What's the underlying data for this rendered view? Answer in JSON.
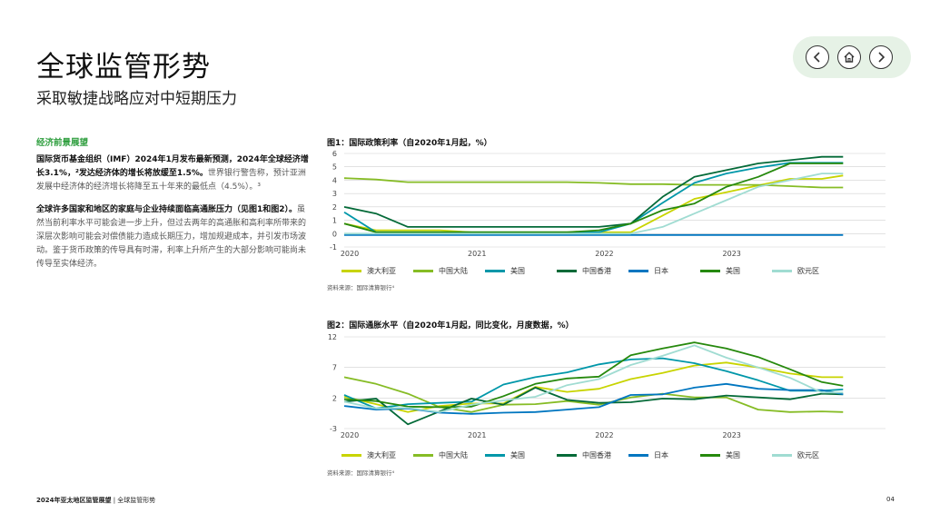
{
  "header": {
    "title": "全球监管形势",
    "subtitle": "采取敏捷战略应对中短期压力"
  },
  "nav": {
    "prev_icon": "chevron-left-icon",
    "home_icon": "home-icon",
    "next_icon": "chevron-right-icon"
  },
  "left": {
    "section_heading": "经济前景展望",
    "p1_bold": "国际货币基金组织（IMF）2024年1月发布最新预测，2024年全球经济增长3.1%，²发达经济体的增长将放缓至1.5%。",
    "p1_rest": "世界银行警告称，预计亚洲发展中经济体的经济增长将降至五十年来的最低点（4.5%）。³",
    "p2_bold": "全球许多国家和地区的家庭与企业持续面临高通胀压力（见图1和图2）。",
    "p2_rest": "虽然当前利率水平可能会进一步上升，但过去两年的高通胀和高利率所带来的深层次影响可能会对偿债能力造成长期压力，增加规避成本，并引发市场波动。鉴于货币政策的传导具有时滞，利率上升所产生的大部分影响可能尚未传导至实体经济。"
  },
  "fig1": {
    "title": "图1：国际政策利率（自2020年1月起，%）",
    "source": "资料来源：国际清算银行⁴"
  },
  "fig2": {
    "title": "图2：国际通胀水平（自2020年1月起，同比变化，月度数据，%）",
    "source": "资料来源：国际清算银行⁴"
  },
  "legend": [
    {
      "name": "澳大利亚",
      "color": "#c8d400"
    },
    {
      "name": "中国大陆",
      "color": "#86bc25"
    },
    {
      "name": "美国",
      "color": "#0097a9"
    },
    {
      "name": "中国香港",
      "color": "#046a38"
    },
    {
      "name": "日本",
      "color": "#0076c0"
    },
    {
      "name": "美国",
      "color": "#26890d"
    },
    {
      "name": "欧元区",
      "color": "#a0dcd2"
    }
  ],
  "chart_data": [
    {
      "type": "line",
      "title": "图1：国际政策利率（自2020年1月起，%）",
      "x_tick_labels": [
        "2020",
        "2021",
        "2022",
        "2023"
      ],
      "ylim": [
        -1,
        6
      ],
      "y_ticks": [
        "6",
        "5",
        "4",
        "3",
        "2",
        "1",
        "0",
        "-1"
      ],
      "x": [
        "2020-01",
        "2020-04",
        "2020-07",
        "2020-10",
        "2021-01",
        "2021-04",
        "2021-07",
        "2021-10",
        "2022-01",
        "2022-04",
        "2022-07",
        "2022-10",
        "2023-01",
        "2023-04",
        "2023-07",
        "2023-10",
        "2023-12"
      ],
      "series": [
        {
          "name": "澳大利亚",
          "values": [
            0.75,
            0.25,
            0.25,
            0.25,
            0.1,
            0.1,
            0.1,
            0.1,
            0.1,
            0.1,
            1.35,
            2.6,
            3.1,
            3.6,
            4.1,
            4.1,
            4.35
          ]
        },
        {
          "name": "中国大陆",
          "values": [
            4.15,
            4.05,
            3.85,
            3.85,
            3.85,
            3.85,
            3.85,
            3.85,
            3.8,
            3.7,
            3.7,
            3.65,
            3.65,
            3.65,
            3.55,
            3.45,
            3.45
          ]
        },
        {
          "name": "美国",
          "values": [
            1.6,
            0.1,
            0.1,
            0.1,
            0.1,
            0.1,
            0.1,
            0.1,
            0.1,
            0.75,
            2.3,
            3.8,
            4.5,
            4.95,
            5.3,
            5.3,
            5.3
          ]
        },
        {
          "name": "中国香港",
          "values": [
            2.0,
            1.5,
            0.5,
            0.5,
            0.5,
            0.5,
            0.5,
            0.5,
            0.5,
            0.75,
            2.75,
            4.25,
            4.75,
            5.25,
            5.5,
            5.75,
            5.75
          ]
        },
        {
          "name": "日本",
          "values": [
            -0.1,
            -0.1,
            -0.1,
            -0.1,
            -0.1,
            -0.1,
            -0.1,
            -0.1,
            -0.1,
            -0.1,
            -0.1,
            -0.1,
            -0.1,
            -0.1,
            -0.1,
            -0.1,
            -0.1
          ]
        },
        {
          "name": "美国",
          "values": [
            0.75,
            0.1,
            0.1,
            0.1,
            0.1,
            0.1,
            0.1,
            0.1,
            0.25,
            0.75,
            1.75,
            2.25,
            3.5,
            4.25,
            5.25,
            5.25,
            5.25
          ]
        },
        {
          "name": "欧元区",
          "values": [
            0.0,
            0.0,
            0.0,
            0.0,
            0.0,
            0.0,
            0.0,
            0.0,
            0.0,
            0.0,
            0.5,
            1.5,
            2.5,
            3.5,
            4.0,
            4.5,
            4.5
          ]
        }
      ]
    },
    {
      "type": "line",
      "title": "图2：国际通胀水平（自2020年1月起，同比变化，月度数据，%）",
      "x_tick_labels": [
        "2020",
        "2021",
        "2022",
        "2023"
      ],
      "ylim": [
        -3,
        12
      ],
      "y_ticks": [
        "12",
        "7",
        "2",
        "-3"
      ],
      "x": [
        "2020-01",
        "2020-04",
        "2020-07",
        "2020-10",
        "2021-01",
        "2021-04",
        "2021-07",
        "2021-10",
        "2022-01",
        "2022-04",
        "2022-07",
        "2022-10",
        "2023-01",
        "2023-04",
        "2023-07",
        "2023-10",
        "2023-12"
      ],
      "series": [
        {
          "name": "澳大利亚",
          "values": [
            2.2,
            1.0,
            -0.3,
            0.7,
            1.1,
            1.1,
            3.8,
            3.0,
            3.5,
            5.1,
            6.1,
            7.3,
            7.8,
            7.0,
            6.0,
            5.4,
            5.4
          ]
        },
        {
          "name": "中国大陆",
          "values": [
            5.4,
            4.3,
            2.7,
            0.5,
            -0.3,
            0.9,
            1.0,
            1.5,
            0.9,
            2.1,
            2.7,
            2.1,
            2.1,
            0.1,
            -0.3,
            -0.2,
            -0.3
          ]
        },
        {
          "name": "美国",
          "values": [
            2.5,
            0.3,
            1.0,
            1.2,
            1.4,
            4.2,
            5.4,
            6.2,
            7.5,
            8.3,
            8.5,
            7.7,
            6.4,
            4.9,
            3.2,
            3.2,
            3.4
          ]
        },
        {
          "name": "中国香港",
          "values": [
            1.4,
            1.9,
            -2.3,
            -0.2,
            1.9,
            0.9,
            3.7,
            1.7,
            1.2,
            1.3,
            1.9,
            1.8,
            2.4,
            2.1,
            1.8,
            2.7,
            2.6
          ]
        },
        {
          "name": "日本",
          "values": [
            0.7,
            0.1,
            0.3,
            -0.4,
            -0.6,
            -0.4,
            -0.3,
            0.1,
            0.5,
            2.5,
            2.6,
            3.7,
            4.3,
            3.5,
            3.3,
            3.3,
            2.6
          ]
        },
        {
          "name": "美国",
          "values": [
            1.8,
            1.5,
            0.6,
            0.5,
            0.6,
            2.3,
            4.3,
            5.2,
            5.5,
            9.0,
            10.1,
            11.1,
            10.1,
            8.7,
            6.7,
            4.6,
            4.0
          ]
        },
        {
          "name": "欧元区",
          "values": [
            1.4,
            0.3,
            0.4,
            -0.3,
            0.9,
            1.6,
            2.2,
            4.1,
            5.1,
            7.4,
            8.9,
            10.6,
            8.6,
            7.0,
            5.3,
            2.9,
            2.9
          ]
        }
      ]
    }
  ],
  "footer": {
    "report": "2024年亚太地区监管展望",
    "section": "全球监管形势",
    "page": "04"
  }
}
